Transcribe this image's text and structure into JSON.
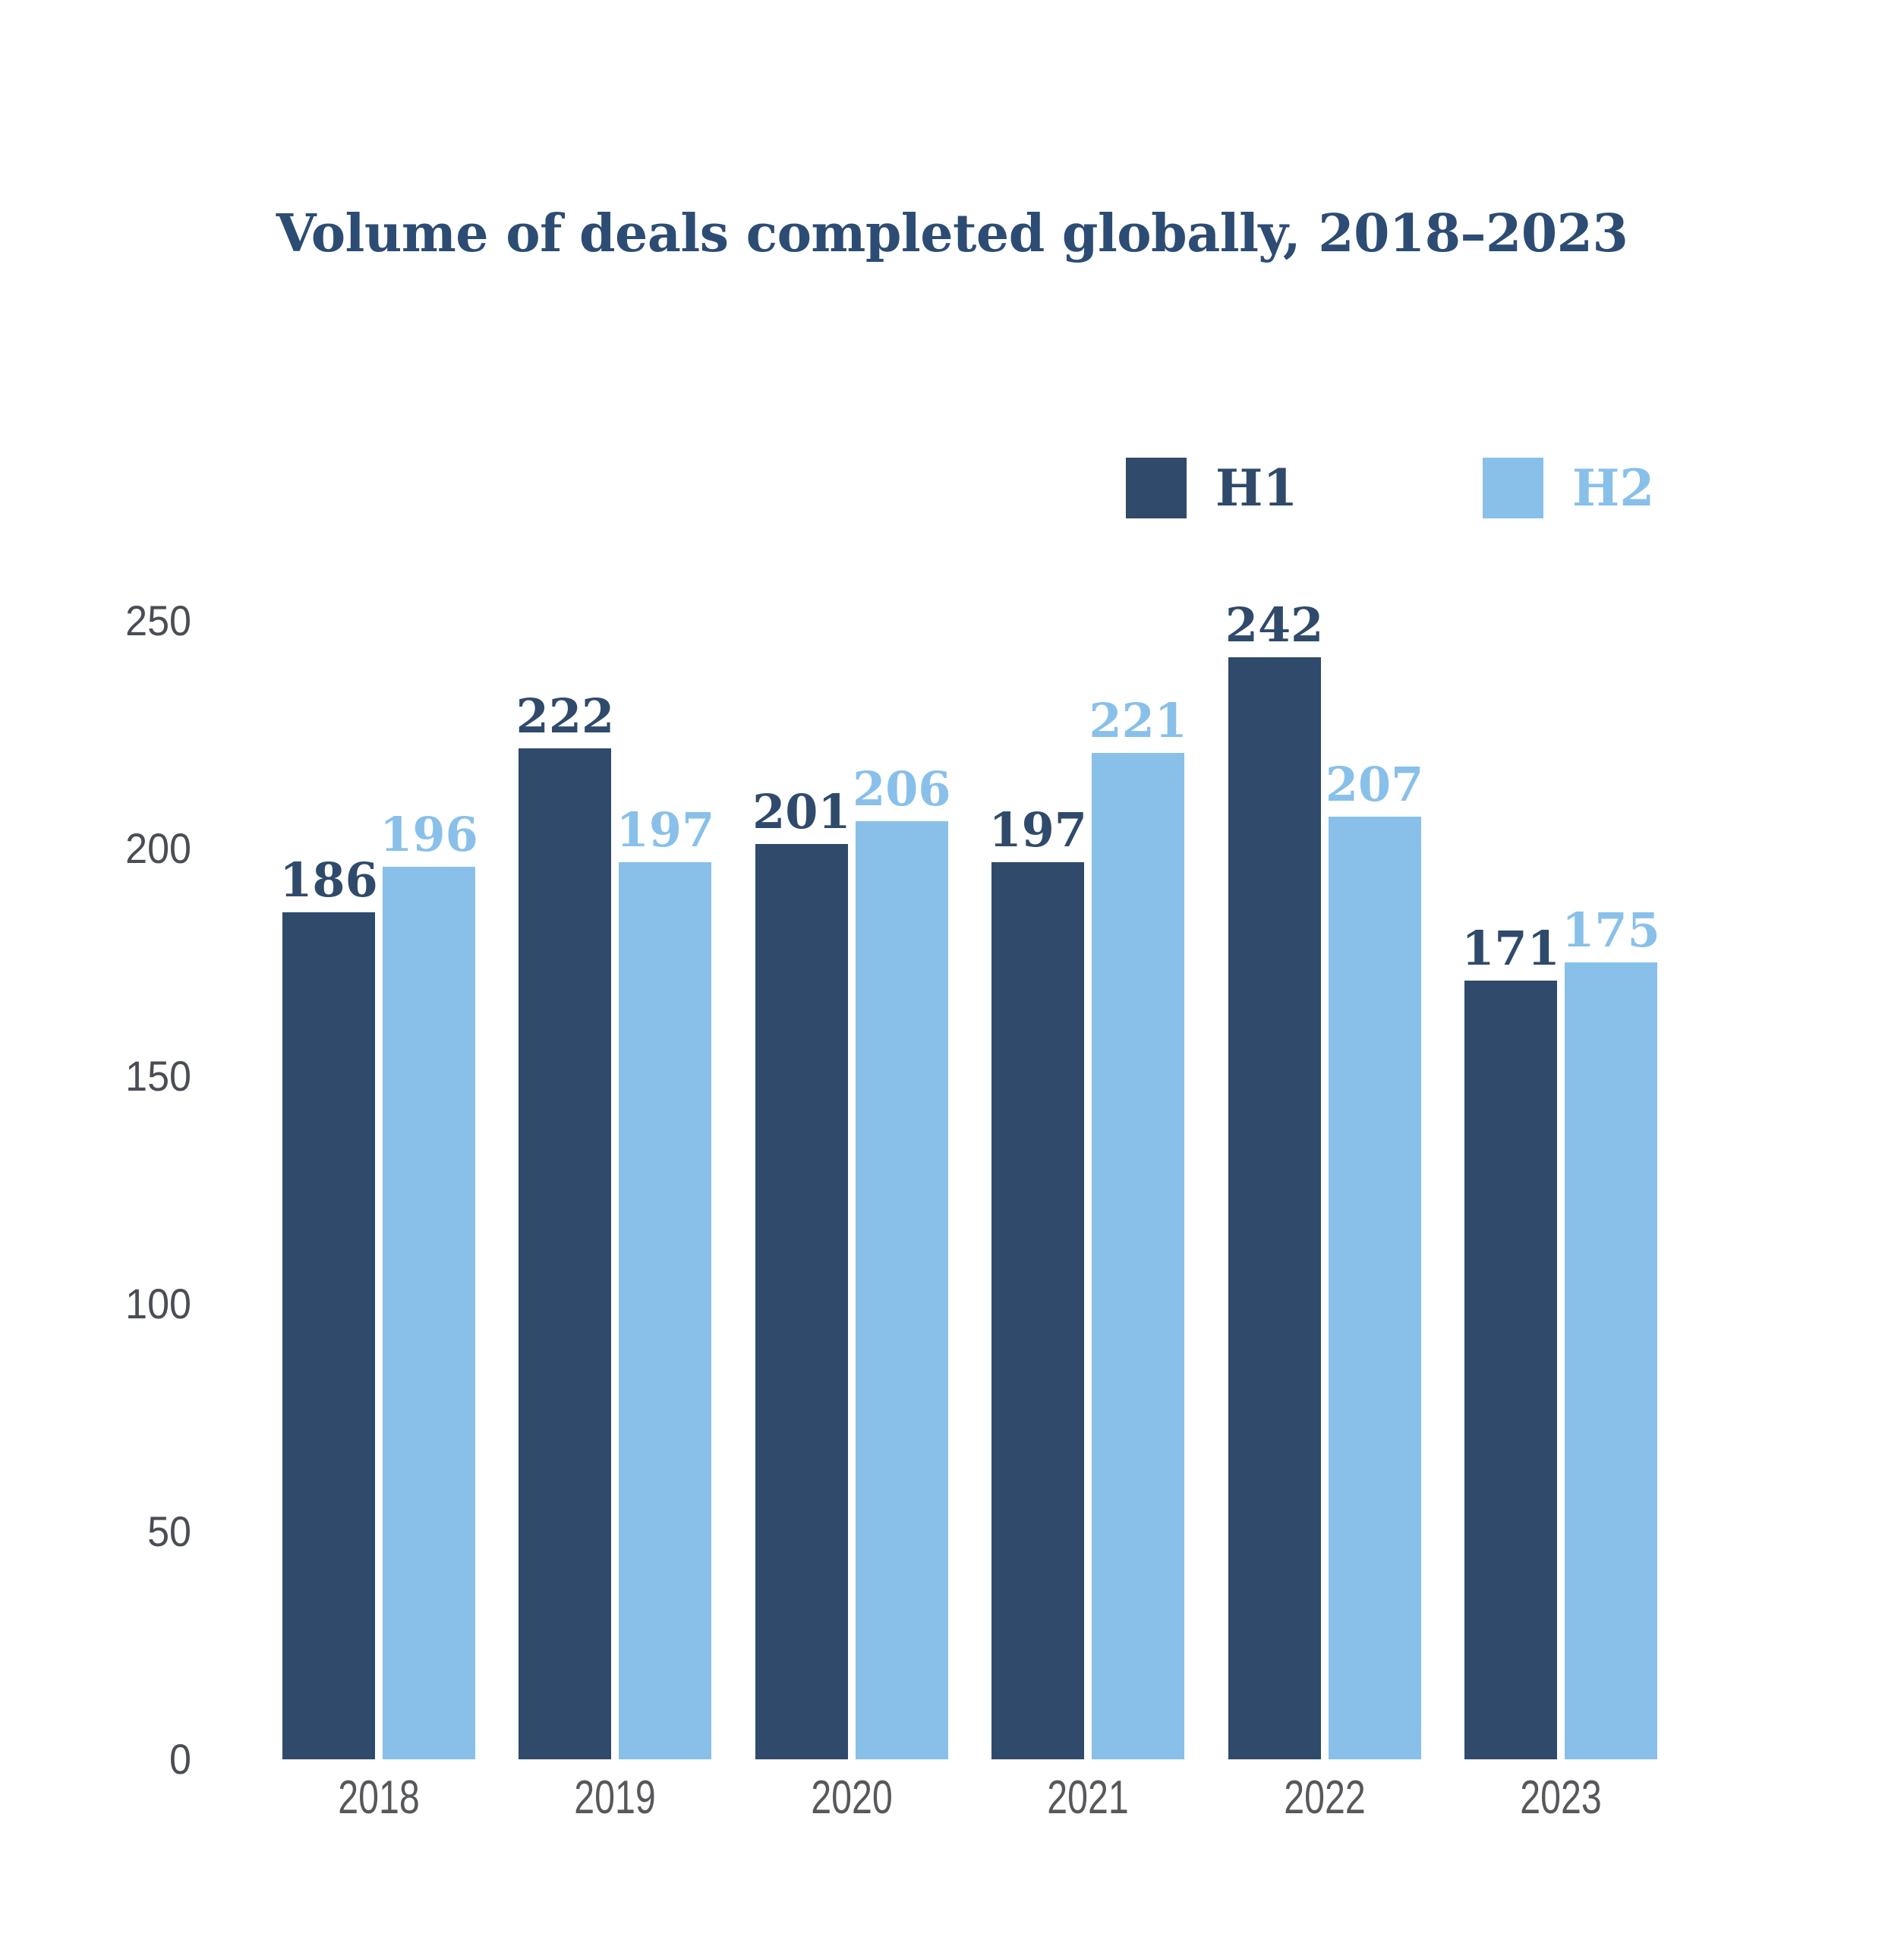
{
  "chart_data": {
    "type": "bar",
    "title": "Volume of deals completed globally, 2018–2023",
    "categories": [
      "2018",
      "2019",
      "2020",
      "2021",
      "2022",
      "2023"
    ],
    "series": [
      {
        "name": "H1",
        "color": "#2F4A6B",
        "values": [
          186,
          222,
          201,
          197,
          242,
          171
        ]
      },
      {
        "name": "H2",
        "color": "#88C0EA",
        "values": [
          196,
          197,
          206,
          221,
          207,
          175
        ]
      }
    ],
    "yticks": [
      0,
      50,
      100,
      150,
      200,
      250
    ],
    "ylim": [
      0,
      250
    ],
    "xlabel": "",
    "ylabel": "",
    "grid": false,
    "axis_lines": false,
    "legend_position": "top-right",
    "value_labels": true
  },
  "colors": {
    "title_text": "#2C4C74",
    "y_tick_text": "#4A4D55",
    "x_tick_text": "#56585C",
    "background": "#FFFFFF"
  }
}
